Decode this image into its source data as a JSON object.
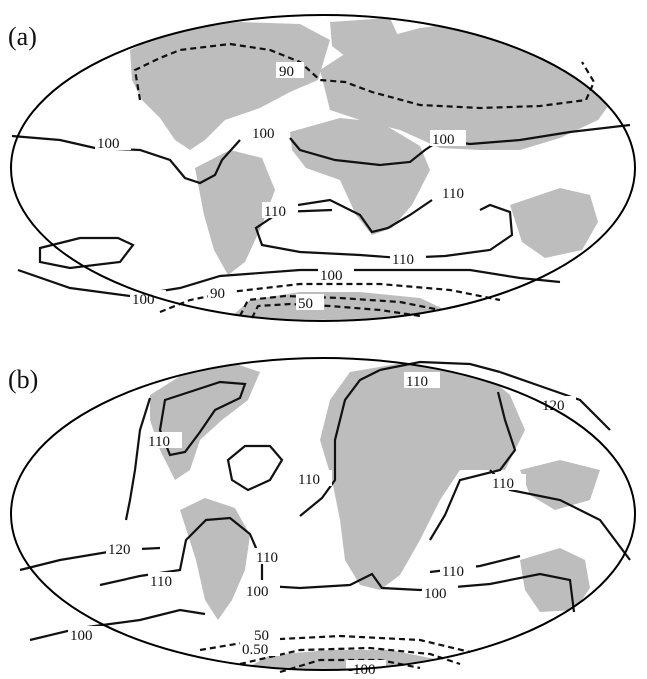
{
  "panels": [
    {
      "label": "(a)",
      "contour_labels": [
        "90",
        "100",
        "100",
        "100",
        "110",
        "110",
        "110",
        "100",
        "100",
        "90",
        "50"
      ]
    },
    {
      "label": "(b)",
      "contour_labels": [
        "110",
        "120",
        "110",
        "110",
        "110",
        "120",
        "110",
        "110",
        "100",
        "110",
        "100",
        "100",
        "50",
        "0.50",
        "-100"
      ]
    }
  ],
  "colors": {
    "land": "#bdbdbd",
    "contour": "#111111",
    "outline": "#000000"
  }
}
